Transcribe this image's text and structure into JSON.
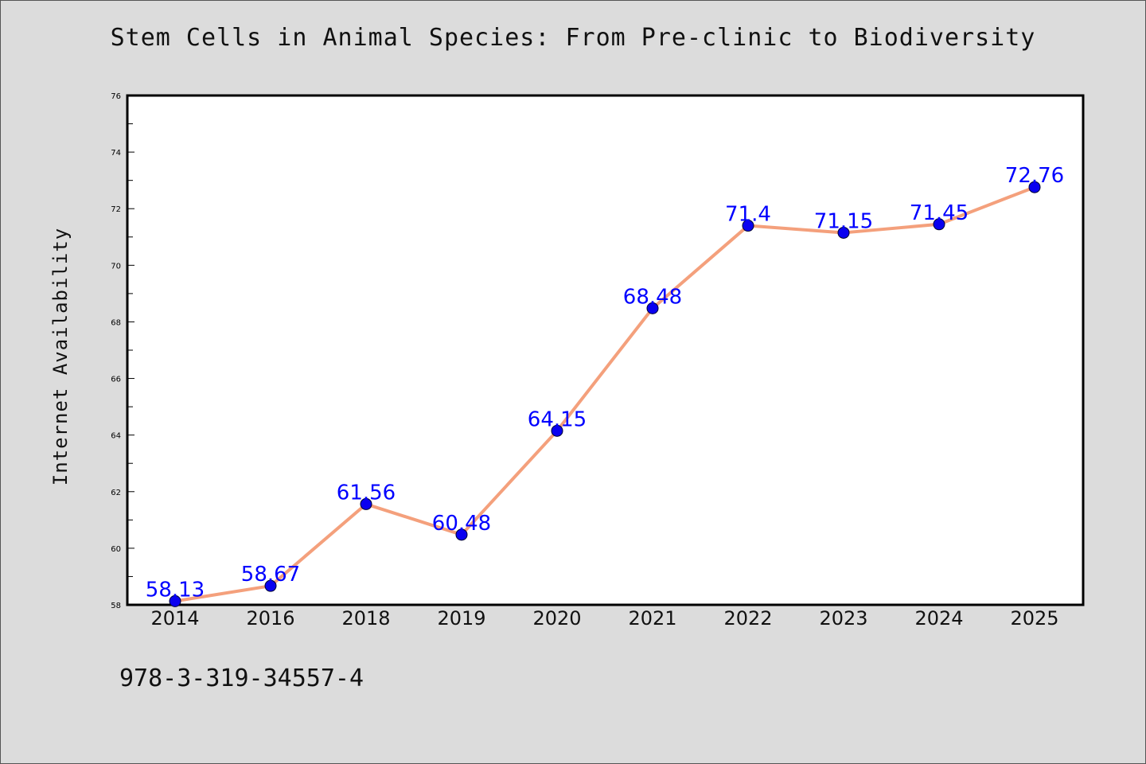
{
  "chart_data": {
    "type": "line",
    "title": "Stem Cells in Animal Species: From Pre-clinic to Biodiversity",
    "xlabel": "",
    "ylabel": "Internet Availability",
    "categories": [
      "2014",
      "2016",
      "2018",
      "2019",
      "2020",
      "2021",
      "2022",
      "2023",
      "2024",
      "2025"
    ],
    "series": [
      {
        "values": [
          58.13,
          58.67,
          61.56,
          60.48,
          64.15,
          68.48,
          71.4,
          71.15,
          71.45,
          72.76
        ],
        "data_labels": [
          "58.13",
          "58.67",
          "61.56",
          "60.48",
          "64.15",
          "68.48",
          "71.4",
          "71.15",
          "71.45",
          "72.76"
        ],
        "line_color": "#f4a07c",
        "marker_color": "#0a00f0"
      }
    ],
    "ylim": [
      58,
      76
    ],
    "y_ticks": [
      "58",
      "60",
      "62",
      "64",
      "66",
      "68",
      "70",
      "72",
      "74",
      "76"
    ],
    "grid": false,
    "legend": "none",
    "label_color": "#0000ff"
  },
  "footer": {
    "isbn": "978-3-319-34557-4"
  },
  "colors": {
    "background": "#dcdcdc",
    "plot_background": "#ffffff"
  }
}
